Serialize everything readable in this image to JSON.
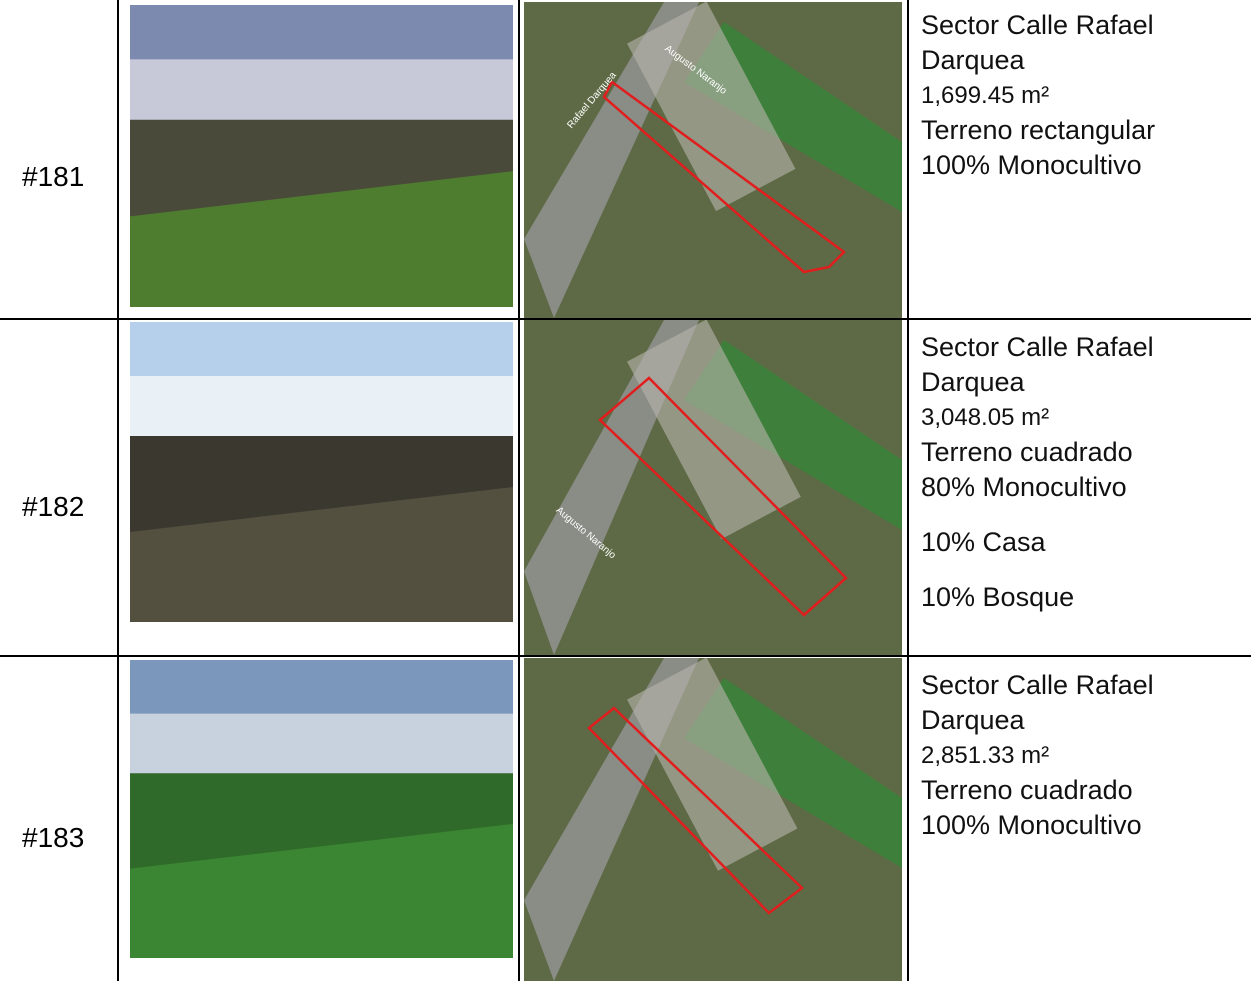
{
  "table": {
    "rows": [
      {
        "id": "#181",
        "location": "Sector Calle Rafael Darquea",
        "area": "1,699.45 m²",
        "shape": "Terreno rectangular",
        "uses": [
          "100% Monocultivo"
        ],
        "map_labels": [
          "Rafael Darquea",
          "Augusto Naranjo"
        ]
      },
      {
        "id": "#182",
        "location": "Sector Calle Rafael Darquea",
        "area": "3,048.05 m²",
        "shape": "Terreno cuadrado",
        "uses": [
          "80% Monocultivo",
          "10% Casa",
          "10% Bosque"
        ],
        "map_labels": [
          "Augusto Naranjo"
        ]
      },
      {
        "id": "#183",
        "location": "Sector Calle Rafael Darquea",
        "area": "2,851.33 m²",
        "shape": "Terreno cuadrado",
        "uses": [
          "100% Monocultivo"
        ],
        "map_labels": []
      }
    ]
  }
}
